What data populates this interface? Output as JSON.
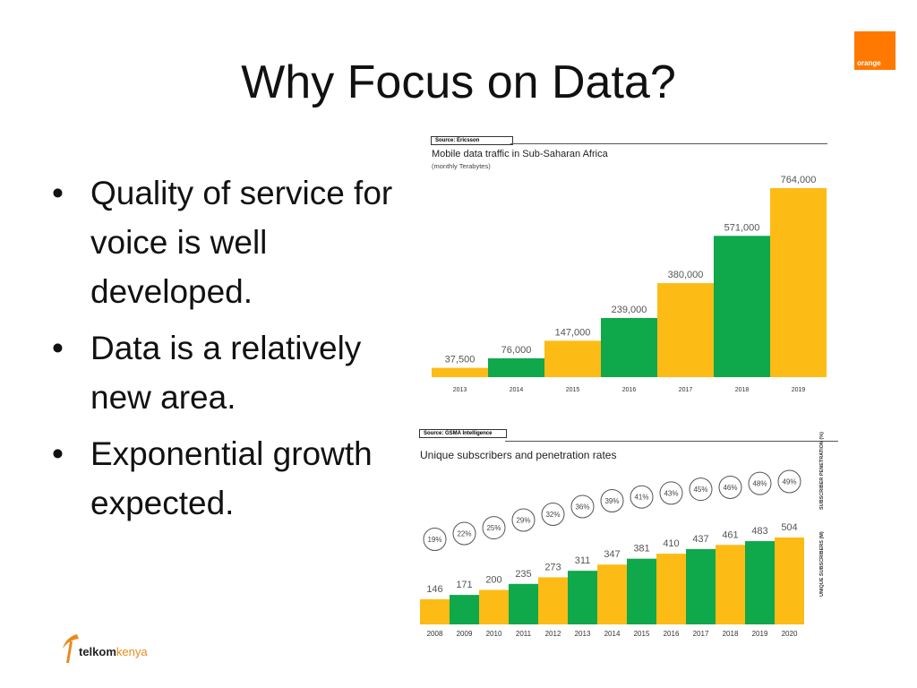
{
  "slide": {
    "title": "Why Focus on Data?",
    "bullets": [
      "Quality of service for voice is well developed.",
      "Data is a relatively new area.",
      "Exponential growth expected."
    ],
    "bullet_glyph": "•",
    "logo_orange": "orange",
    "logo_telkom_bold": "telkom",
    "logo_telkom_light": "kenya"
  },
  "colors": {
    "yellow": "#fdbb16",
    "green": "#0fa84b",
    "orange_brand": "#ff7900"
  },
  "chart_data": [
    {
      "type": "bar",
      "source": "Source: Ericsson",
      "title": "Mobile data traffic in Sub-Saharan Africa",
      "subtitle": "(monthly Terabytes)",
      "categories": [
        "2013",
        "2014",
        "2015",
        "2016",
        "2017",
        "2018",
        "2019"
      ],
      "values": [
        37500,
        76000,
        147000,
        239000,
        380000,
        571000,
        764000
      ],
      "value_labels": [
        "37,500",
        "76,000",
        "147,000",
        "239,000",
        "380,000",
        "571,000",
        "764,000"
      ],
      "bar_colors": [
        "yellow",
        "green",
        "yellow",
        "green",
        "yellow",
        "green",
        "yellow"
      ],
      "ylim": [
        0,
        764000
      ]
    },
    {
      "type": "bar",
      "source": "Source: GSMA Intelligence",
      "title": "Unique subscribers and penetration rates",
      "categories": [
        "2008",
        "2009",
        "2010",
        "2011",
        "2012",
        "2013",
        "2014",
        "2015",
        "2016",
        "2017",
        "2018",
        "2019",
        "2020"
      ],
      "series": [
        {
          "name": "UNIQUE SUBSCRIBERS (M)",
          "values": [
            146,
            171,
            200,
            235,
            273,
            311,
            347,
            381,
            410,
            437,
            461,
            483,
            504
          ]
        },
        {
          "name": "SUBSCRIBER PENETRATION (%)",
          "values": [
            19,
            22,
            25,
            29,
            32,
            36,
            39,
            41,
            43,
            45,
            46,
            48,
            49
          ],
          "labels": [
            "19%",
            "22%",
            "25%",
            "29%",
            "32%",
            "36%",
            "39%",
            "41%",
            "43%",
            "45%",
            "46%",
            "48%",
            "49%"
          ]
        }
      ],
      "bar_colors": [
        "yellow",
        "green",
        "yellow",
        "green",
        "yellow",
        "green",
        "yellow",
        "green",
        "yellow",
        "green",
        "yellow",
        "green",
        "yellow"
      ],
      "ylim": [
        0,
        504
      ]
    }
  ]
}
